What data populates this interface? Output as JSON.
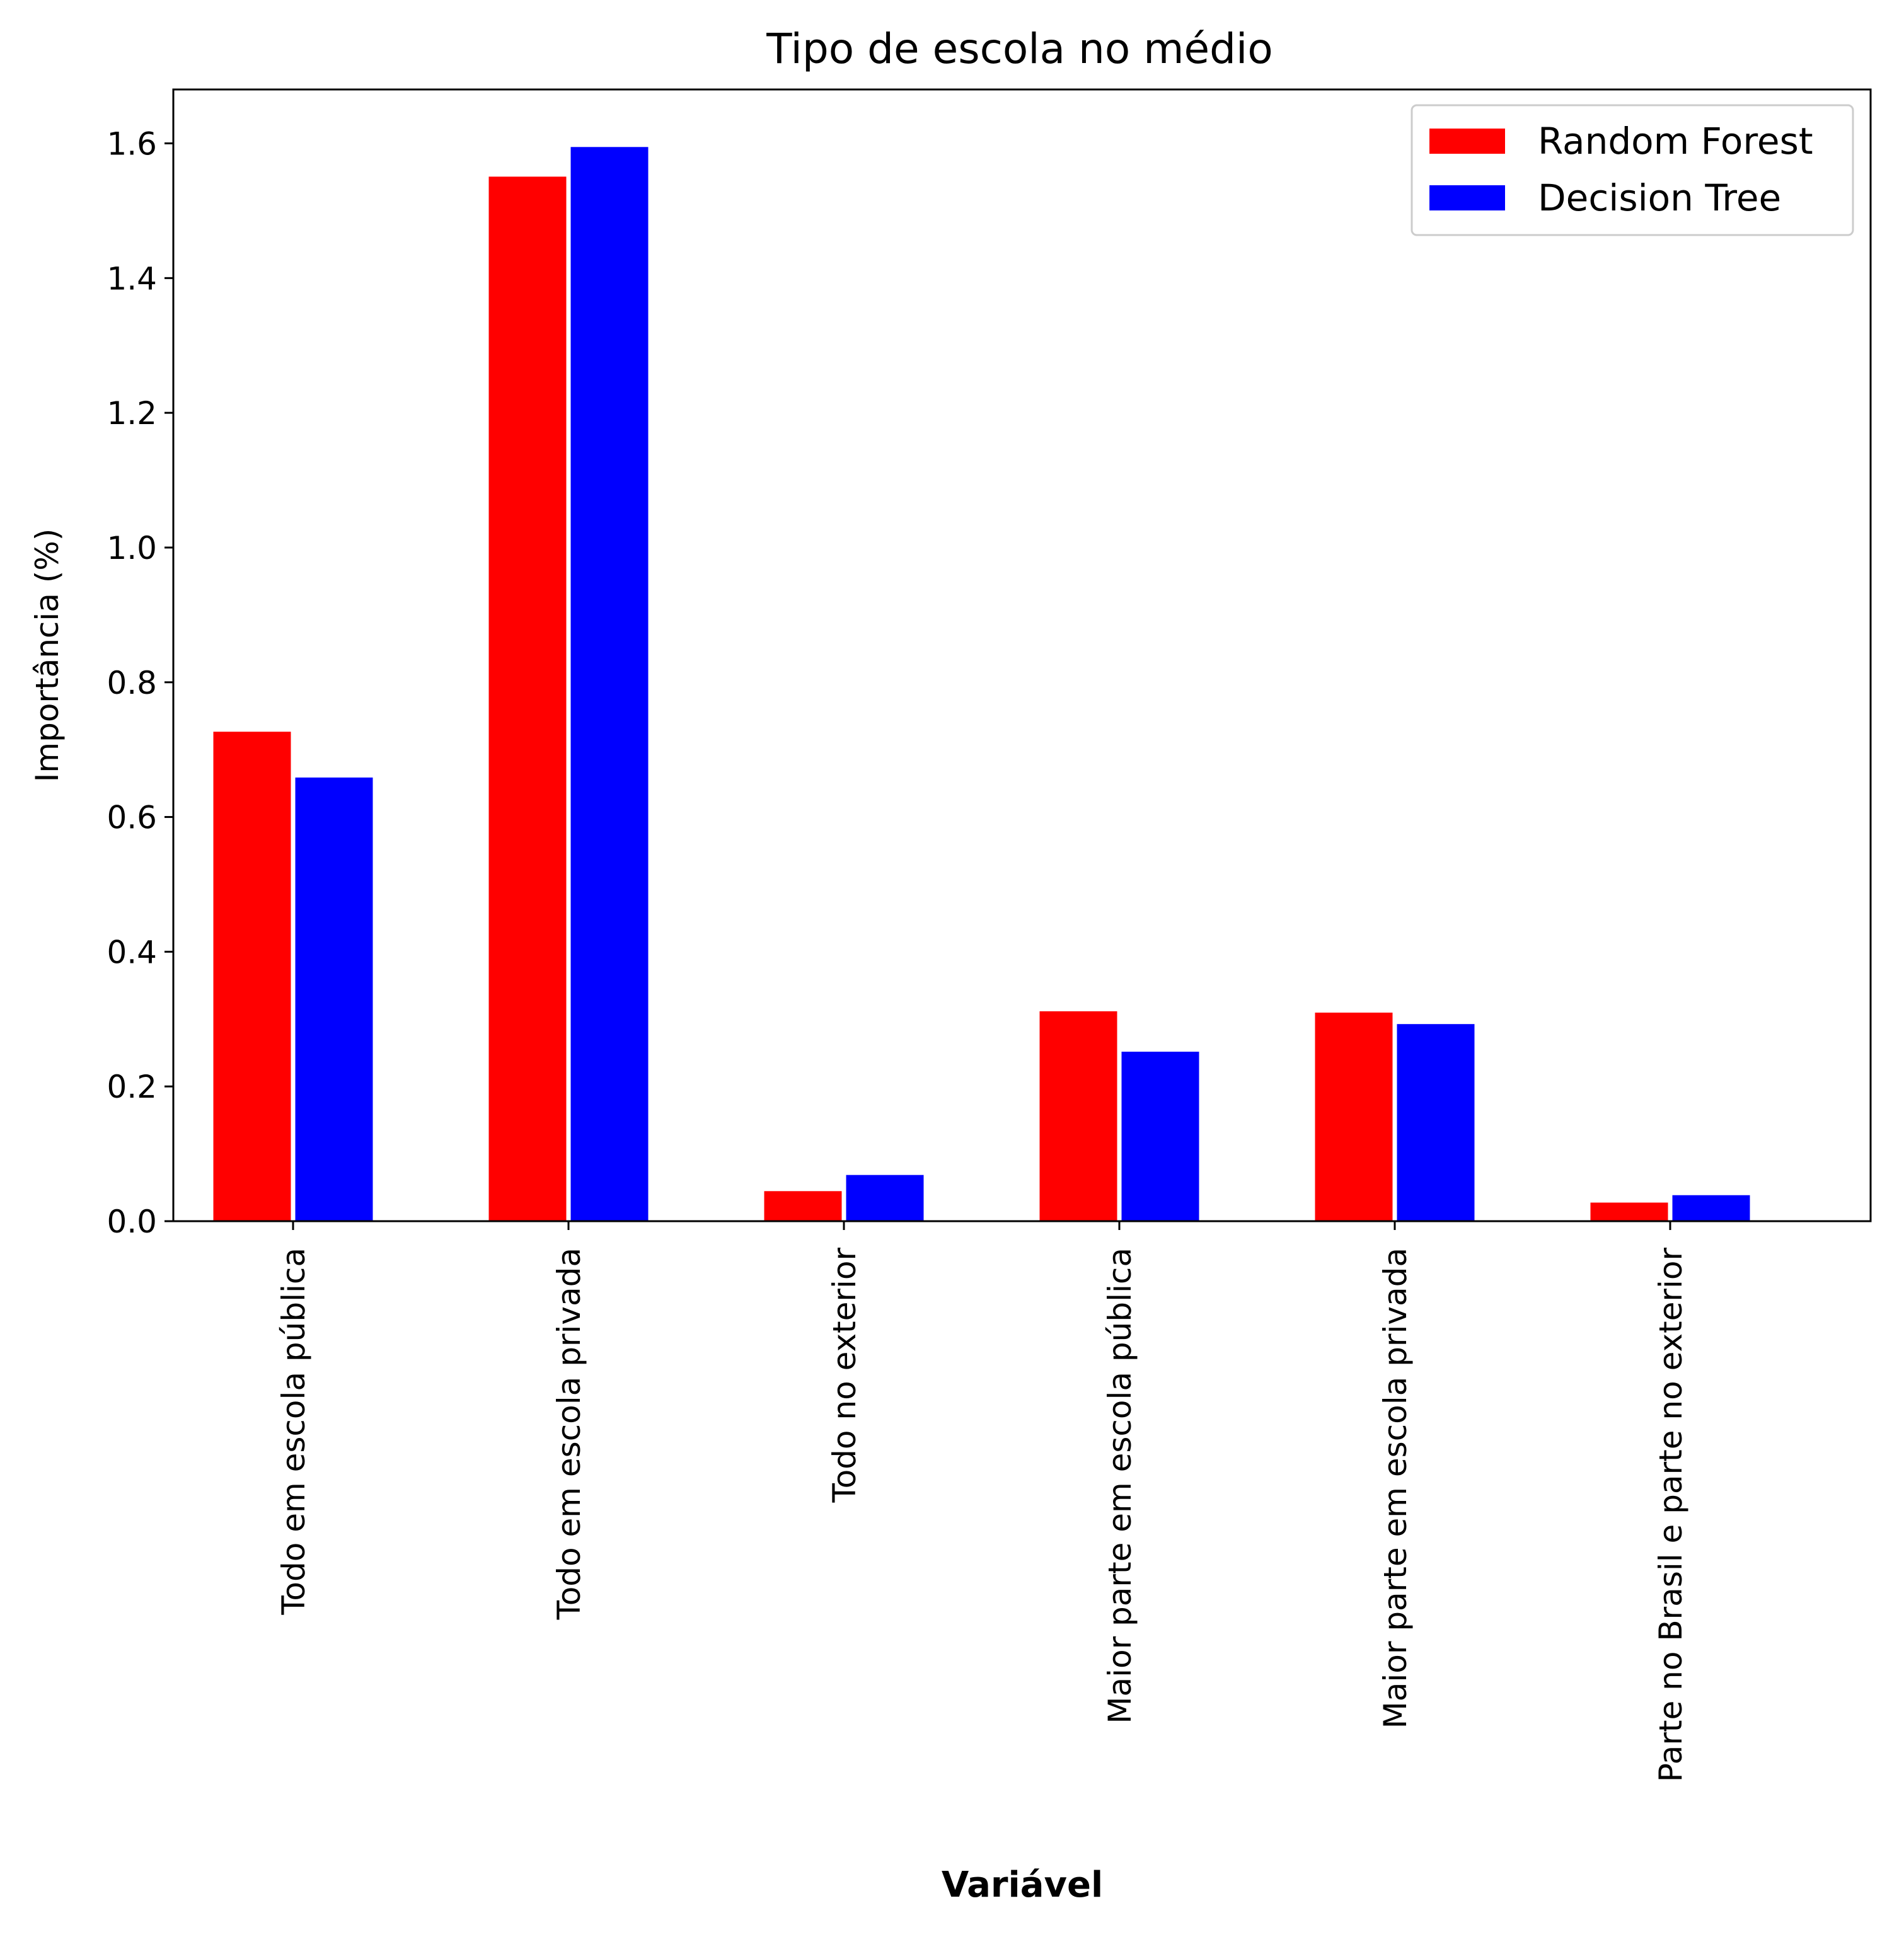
{
  "chart_data": {
    "type": "bar",
    "title": "Tipo de escola no médio",
    "xlabel": "Variável",
    "ylabel": "Importância (%)",
    "ylim": [
      0,
      1.68
    ],
    "yticks": [
      0.0,
      0.2,
      0.4,
      0.6,
      0.8,
      1.0,
      1.2,
      1.4,
      1.6
    ],
    "ytick_labels": [
      "0.0",
      "0.2",
      "0.4",
      "0.6",
      "0.8",
      "1.0",
      "1.2",
      "1.4",
      "1.6"
    ],
    "categories": [
      "Todo em escola pública",
      "Todo em escola privada",
      "Todo no exterior",
      "Maior parte em escola pública",
      "Maior parte em escola privada",
      "Parte no Brasil e parte no exterior"
    ],
    "series": [
      {
        "name": "Random Forest",
        "color": "#ff0000",
        "values": [
          0.728,
          1.552,
          0.046,
          0.313,
          0.311,
          0.029
        ]
      },
      {
        "name": "Decision Tree",
        "color": "#0000ff",
        "values": [
          0.66,
          1.596,
          0.07,
          0.253,
          0.294,
          0.04
        ]
      }
    ],
    "legend_placement": "top-right",
    "grid": false
  }
}
